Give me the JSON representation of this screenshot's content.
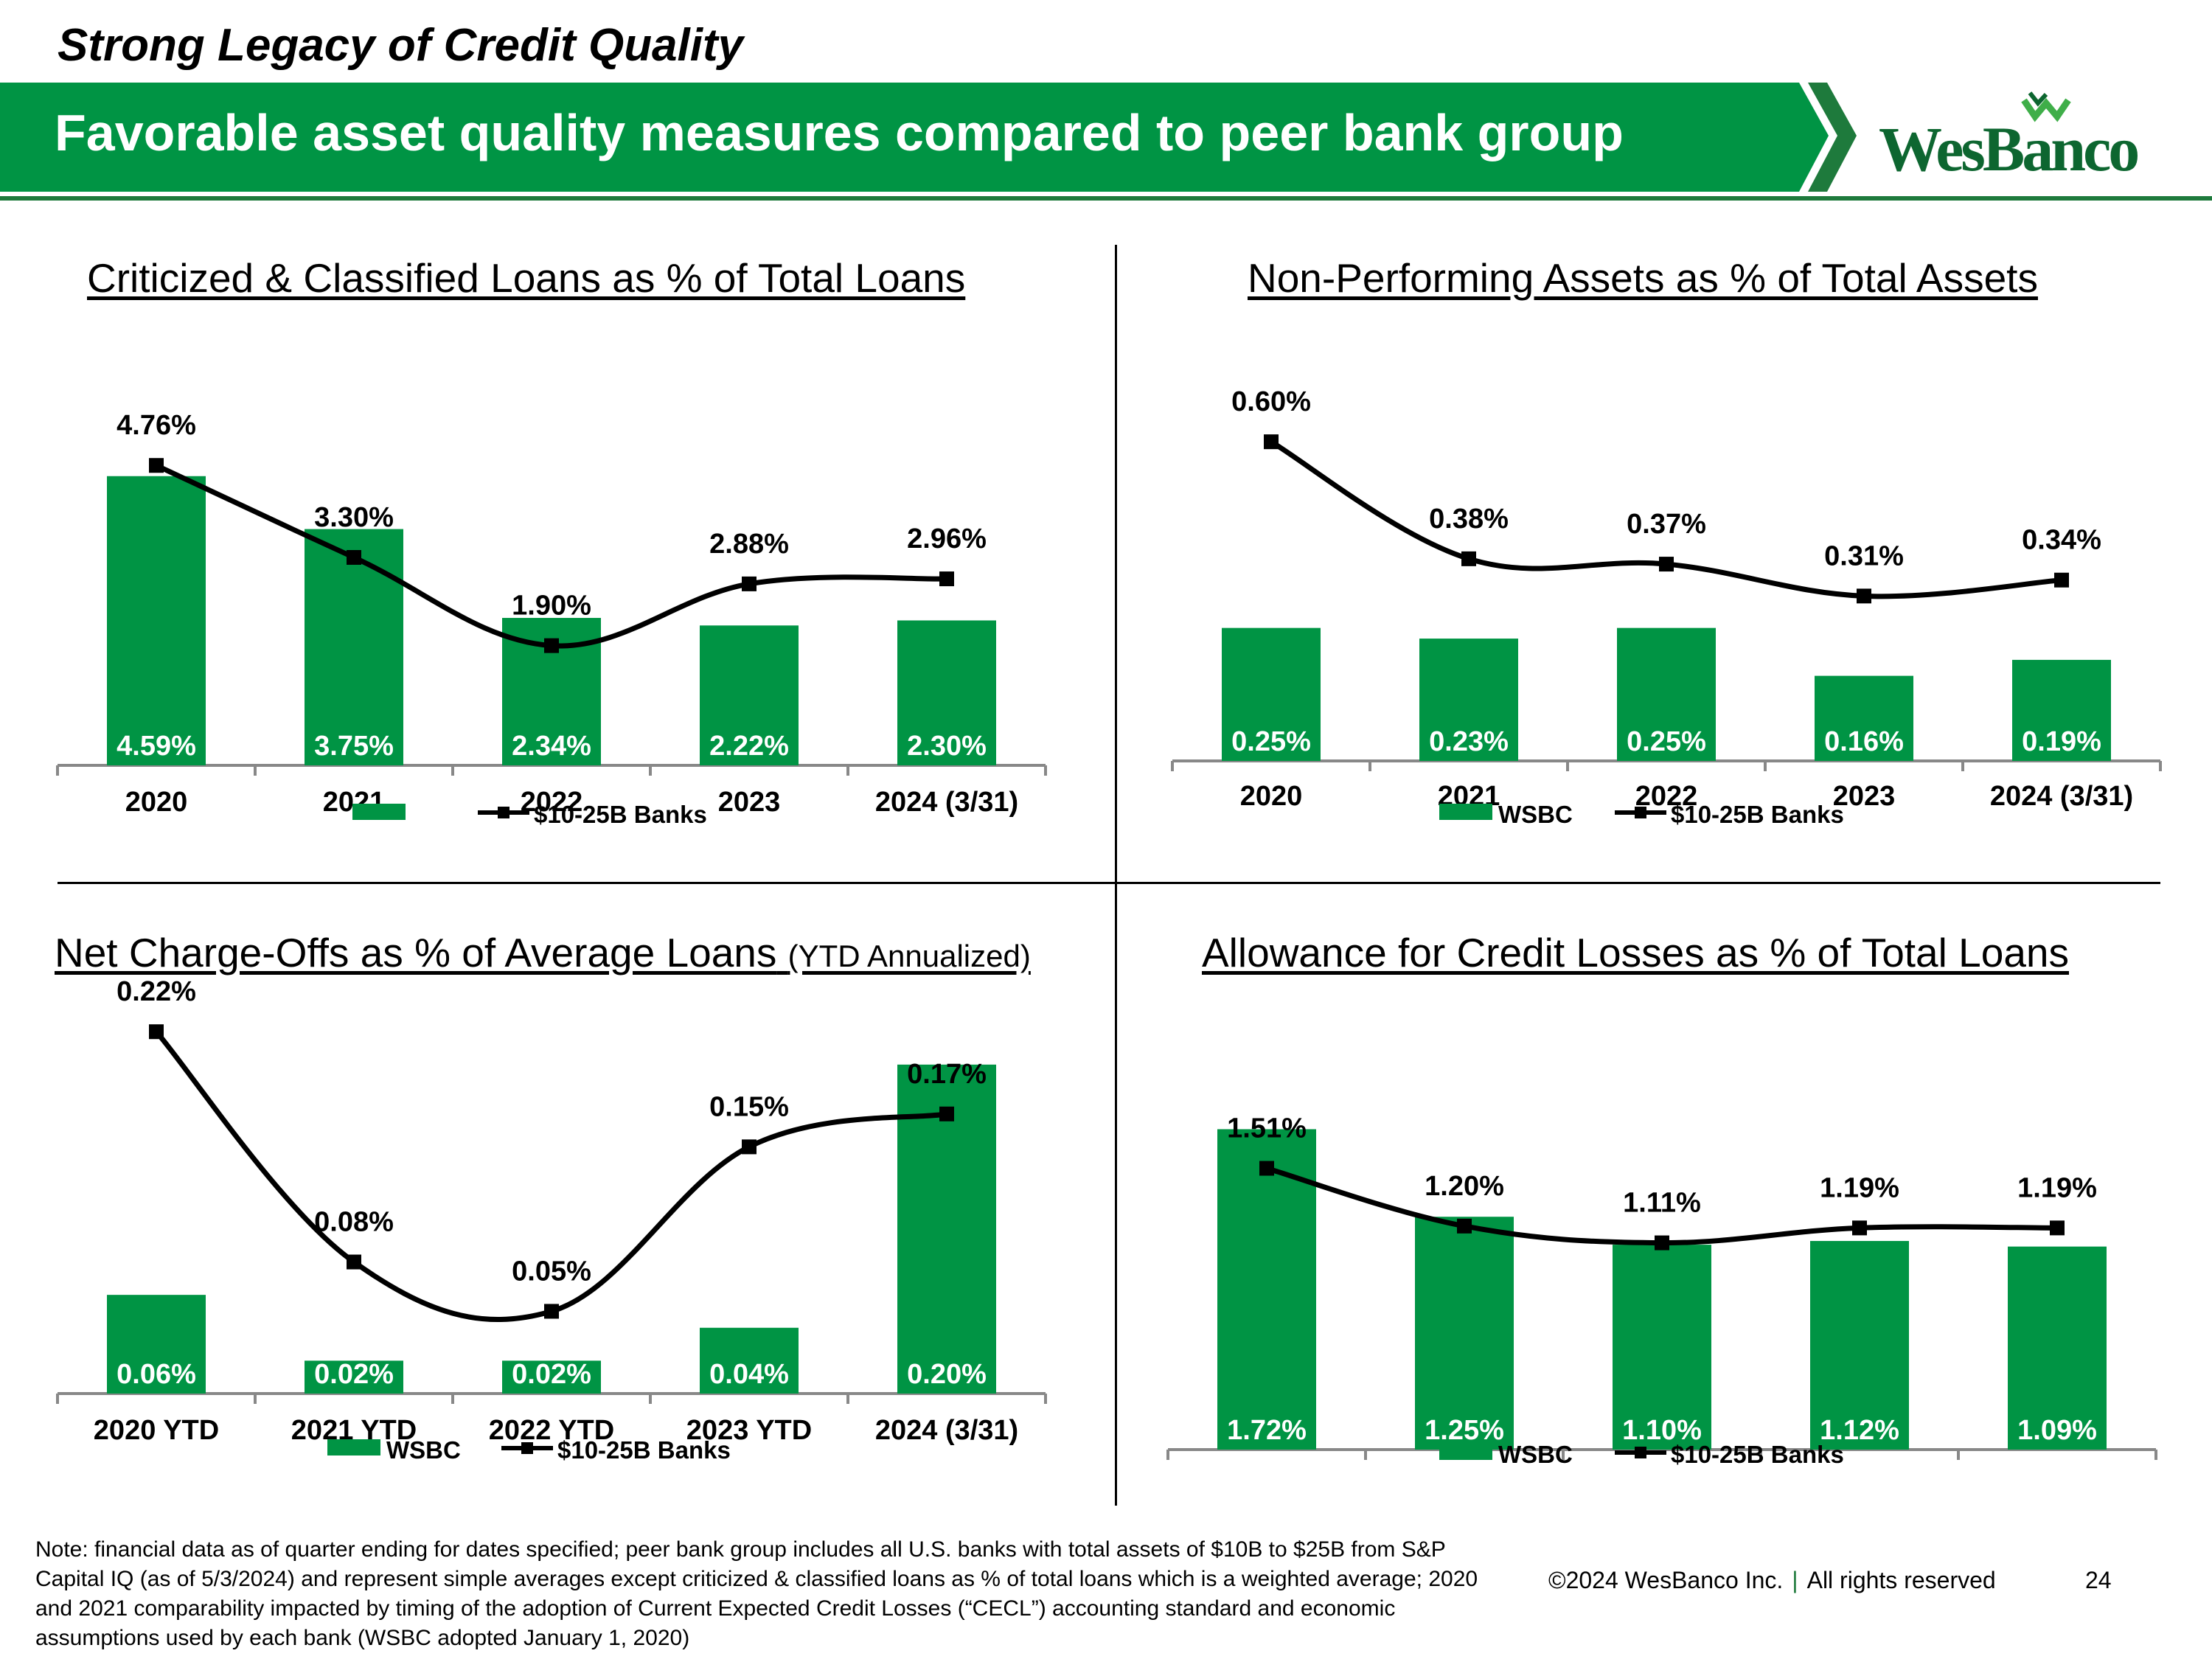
{
  "header": {
    "kicker": "Strong Legacy of Credit Quality",
    "title": "Favorable asset quality measures compared to peer bank group",
    "logo_text": "WesBanco",
    "logo_reg": "®"
  },
  "colors": {
    "bar": "#009444",
    "banner": "#009444",
    "banner_dark": "#1e7a3c",
    "line": "#000000"
  },
  "footer": {
    "note": "Note: financial data as of quarter ending for dates specified; peer bank group includes all U.S. banks with total assets of $10B to $25B from S&P Capital IQ (as of 5/3/2024) and represent simple averages except criticized & classified loans as % of total loans which is a weighted average; 2020 and 2021 comparability impacted by timing of the adoption of Current Expected Credit Losses (“CECL”) accounting standard and economic assumptions used by each bank (WSBC adopted January 1, 2020)",
    "copyright": "©2024 WesBanco Inc.",
    "separator": "|",
    "rights": "All rights reserved",
    "page_number": "24"
  },
  "chart_data": [
    {
      "id": "criticized",
      "type": "bar",
      "title": "Criticized & Classified Loans as % of Total Loans",
      "subtitle": "",
      "categories": [
        "2020",
        "2021",
        "2022",
        "2023",
        "2024 (3/31)"
      ],
      "series": [
        {
          "name": "",
          "type": "bar",
          "values": [
            4.59,
            3.75,
            2.34,
            2.22,
            2.3
          ],
          "labels": [
            "4.59%",
            "3.75%",
            "2.34%",
            "2.22%",
            "2.30%"
          ]
        },
        {
          "name": "$10-25B Banks",
          "type": "line",
          "values": [
            4.76,
            3.3,
            1.9,
            2.88,
            2.96
          ],
          "labels": [
            "4.76%",
            "3.30%",
            "1.90%",
            "2.88%",
            "2.96%"
          ]
        }
      ],
      "ylim": [
        0,
        5.5
      ],
      "legend": [
        "",
        "$10-25B Banks"
      ]
    },
    {
      "id": "npa",
      "type": "bar",
      "title": "Non-Performing Assets as % of Total Assets",
      "subtitle": "",
      "categories": [
        "2020",
        "2021",
        "2022",
        "2023",
        "2024 (3/31)"
      ],
      "series": [
        {
          "name": "WSBC",
          "type": "bar",
          "values": [
            0.25,
            0.23,
            0.25,
            0.16,
            0.19
          ],
          "labels": [
            "0.25%",
            "0.23%",
            "0.25%",
            "0.16%",
            "0.19%"
          ]
        },
        {
          "name": "$10-25B Banks",
          "type": "line",
          "values": [
            0.6,
            0.38,
            0.37,
            0.31,
            0.34
          ],
          "labels": [
            "0.60%",
            "0.38%",
            "0.37%",
            "0.31%",
            "0.34%"
          ]
        }
      ],
      "ylim": [
        0,
        0.7
      ],
      "legend": [
        "WSBC",
        "$10-25B Banks"
      ]
    },
    {
      "id": "nco",
      "type": "bar",
      "title": "Net Charge-Offs as % of Average Loans",
      "subtitle": "(YTD Annualized)",
      "categories": [
        "2020 YTD",
        "2021 YTD",
        "2022 YTD",
        "2023 YTD",
        "2024 (3/31)"
      ],
      "series": [
        {
          "name": "WSBC",
          "type": "bar",
          "values": [
            0.06,
            0.02,
            0.02,
            0.04,
            0.2
          ],
          "labels": [
            "0.06%",
            "0.02%",
            "0.02%",
            "0.04%",
            "0.20%"
          ]
        },
        {
          "name": "$10-25B Banks",
          "type": "line",
          "values": [
            0.22,
            0.08,
            0.05,
            0.15,
            0.17
          ],
          "labels": [
            "0.22%",
            "0.08%",
            "0.05%",
            "0.15%",
            "0.17%"
          ]
        }
      ],
      "ylim": [
        0,
        0.26
      ],
      "legend": [
        "WSBC",
        "$10-25B Banks"
      ]
    },
    {
      "id": "acl",
      "type": "bar",
      "title": "Allowance for Credit Losses as % of Total Loans",
      "subtitle": "",
      "categories": [
        "",
        "",
        "",
        "",
        ""
      ],
      "series": [
        {
          "name": "WSBC",
          "type": "bar",
          "values": [
            1.72,
            1.25,
            1.1,
            1.12,
            1.09
          ],
          "labels": [
            "1.72%",
            "1.25%",
            "1.10%",
            "1.12%",
            "1.09%"
          ]
        },
        {
          "name": "$10-25B Banks",
          "type": "line",
          "values": [
            1.51,
            1.2,
            1.11,
            1.19,
            1.19
          ],
          "labels": [
            "1.51%",
            "1.20%",
            "1.11%",
            "1.19%",
            "1.19%"
          ]
        }
      ],
      "ylim": [
        0,
        1.9
      ],
      "legend": [
        "WSBC",
        "$10-25B Banks"
      ]
    }
  ]
}
